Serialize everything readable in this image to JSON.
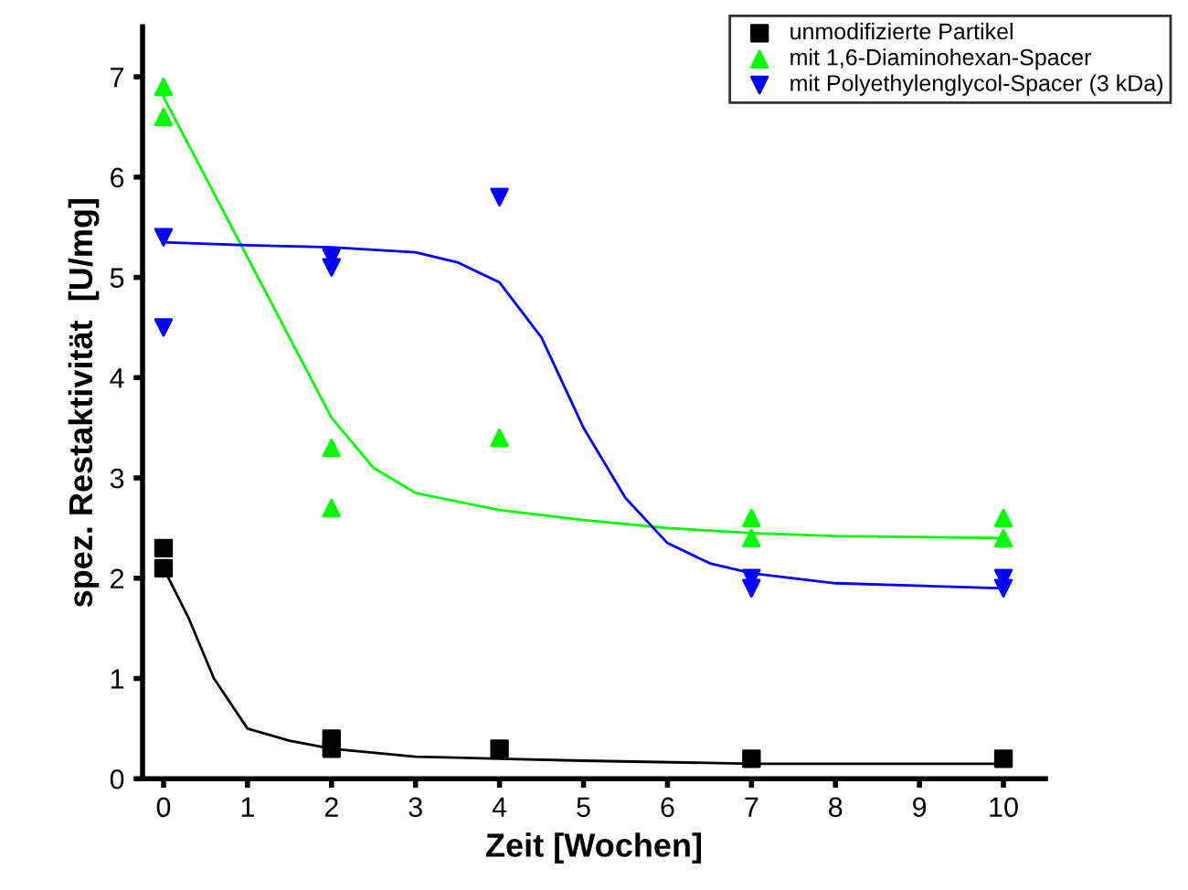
{
  "chart_data": {
    "type": "scatter",
    "xlabel": "Zeit [Wochen]",
    "ylabel": "spez. Restaktivität  [U/mg]",
    "xlim": [
      -0.25,
      10.5
    ],
    "ylim": [
      0,
      7.5
    ],
    "xticks": [
      0,
      1,
      2,
      3,
      4,
      5,
      6,
      7,
      8,
      9,
      10
    ],
    "yticks": [
      0,
      1,
      2,
      3,
      4,
      5,
      6,
      7
    ],
    "grid": false,
    "legend": "top right",
    "series": [
      {
        "name": "unmodifizierte Partikel",
        "marker": "square",
        "color": "#000000",
        "x": [
          0,
          0,
          2,
          2,
          4,
          7,
          10
        ],
        "values": [
          2.3,
          2.1,
          0.4,
          0.3,
          0.3,
          0.2,
          0.2
        ]
      },
      {
        "name": "mit 1,6-Diaminohexan-Spacer",
        "marker": "triangle",
        "color": "#00ff00",
        "x": [
          0,
          0,
          2,
          2,
          4,
          7,
          7,
          10,
          10
        ],
        "values": [
          6.9,
          6.6,
          3.3,
          2.7,
          3.4,
          2.6,
          2.4,
          2.6,
          2.4
        ]
      },
      {
        "name": "mit Polyethylenglycol-Spacer (3 kDa)",
        "marker": "triangle_down",
        "color": "#0000ff",
        "x": [
          0,
          0,
          2,
          2,
          4,
          7,
          7,
          10,
          10
        ],
        "values": [
          5.4,
          4.5,
          5.2,
          5.1,
          5.8,
          2.0,
          1.9,
          2.0,
          1.9
        ]
      },
      {
        "type": "line",
        "color": "#000000",
        "x": [
          0,
          0.3,
          0.6,
          1,
          1.5,
          2,
          3,
          4,
          5,
          7,
          10
        ],
        "values": [
          2.1,
          1.6,
          1.0,
          0.5,
          0.38,
          0.3,
          0.22,
          0.2,
          0.18,
          0.15,
          0.15
        ]
      },
      {
        "type": "line",
        "color": "#00ff00",
        "x": [
          0,
          0.5,
          1,
          1.5,
          2,
          2.5,
          3,
          4,
          5,
          6,
          7,
          8,
          10
        ],
        "values": [
          6.8,
          6.0,
          5.2,
          4.4,
          3.6,
          3.1,
          2.85,
          2.68,
          2.58,
          2.5,
          2.45,
          2.42,
          2.4
        ]
      },
      {
        "type": "line",
        "color": "#0000ff",
        "x": [
          0,
          1,
          2,
          3,
          3.5,
          4,
          4.5,
          5,
          5.5,
          6,
          6.5,
          7,
          8,
          10
        ],
        "values": [
          5.35,
          5.32,
          5.3,
          5.25,
          5.15,
          4.95,
          4.4,
          3.5,
          2.8,
          2.35,
          2.15,
          2.05,
          1.95,
          1.9
        ]
      }
    ]
  }
}
